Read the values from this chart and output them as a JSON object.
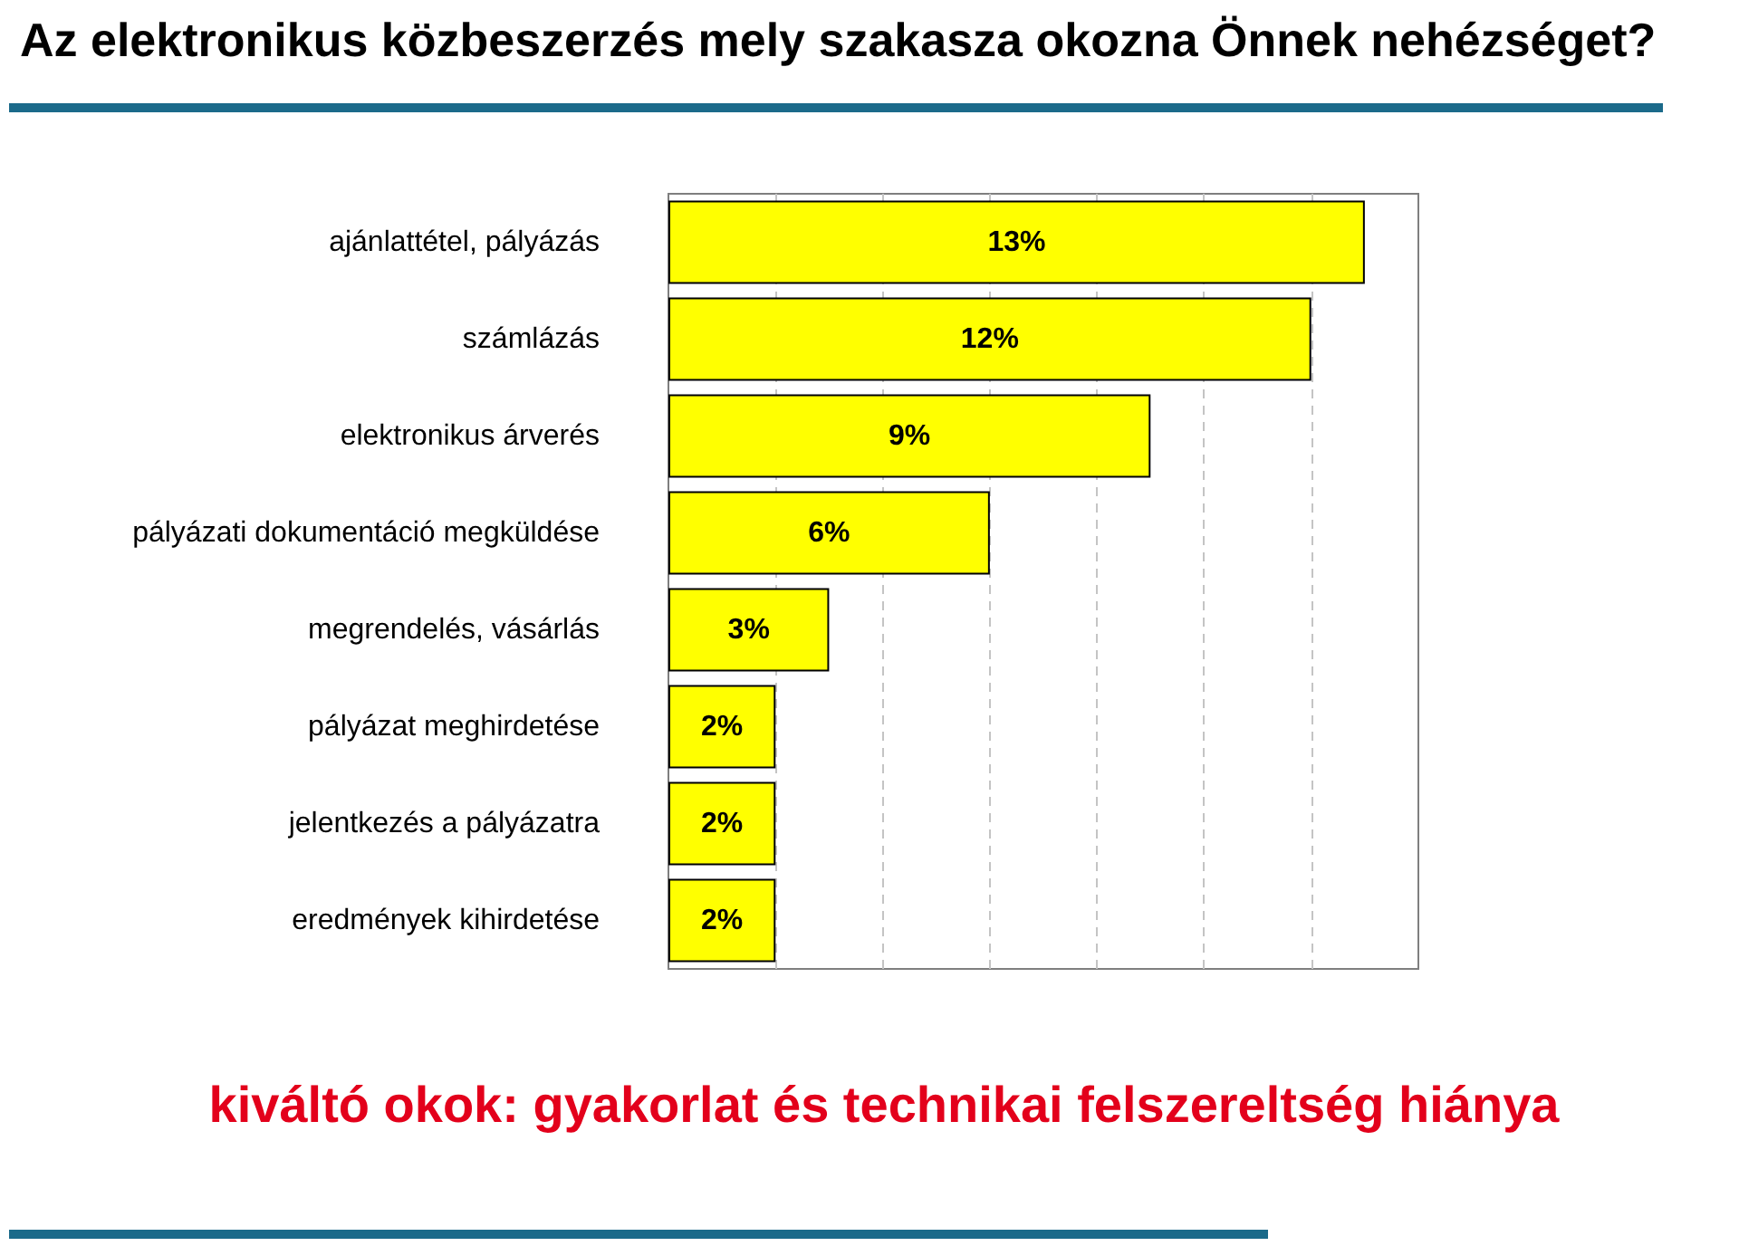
{
  "chart_data": {
    "type": "bar",
    "orientation": "horizontal",
    "title": "Az elektronikus közbeszerzés mely szakasza okozna Önnek nehézséget?",
    "annotations": [
      "kiváltó okok: gyakorlat és technikai felszereltség hiánya"
    ],
    "categories": [
      "ajánlattétel, pályázás",
      "számlázás",
      "elektronikus árverés",
      "pályázati dokumentáció megküldése",
      "megrendelés, vásárlás",
      "pályázat meghirdetése",
      "jelentkezés a pályázatra",
      "eredmények kihirdetése"
    ],
    "values": [
      13,
      12,
      9,
      6,
      3,
      2,
      2,
      2
    ],
    "color": "#ffff00",
    "value_labels": [
      "13%",
      "12%",
      "9%",
      "6%",
      "3%",
      "2%",
      "2%",
      "2%"
    ],
    "xlim": [
      0,
      14
    ],
    "xticks": [
      {
        "value": 2,
        "label": null
      },
      {
        "value": 4,
        "label": null
      },
      {
        "value": 6,
        "label": null
      },
      {
        "value": 8,
        "label": null
      },
      {
        "value": 10,
        "label": null
      },
      {
        "value": 12,
        "label": null
      }
    ],
    "grid": "x",
    "tick_labels": "y"
  }
}
